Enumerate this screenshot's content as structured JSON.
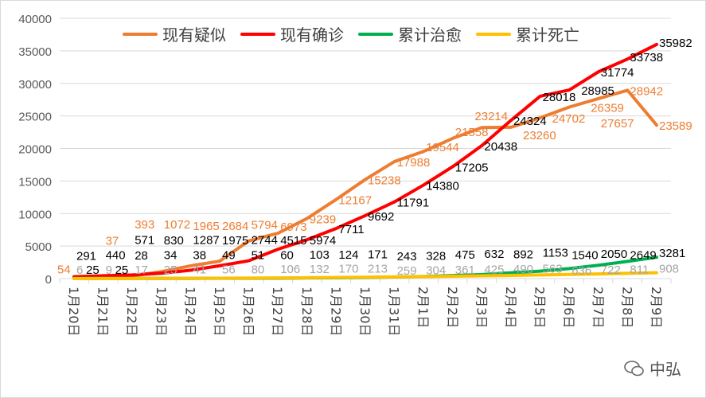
{
  "chart_data": {
    "type": "line",
    "title": "",
    "xlabel": "",
    "ylabel": "",
    "ylim": [
      0,
      40000
    ],
    "yticks": [
      0,
      5000,
      10000,
      15000,
      20000,
      25000,
      30000,
      35000,
      40000
    ],
    "grid": true,
    "legend_position": "top",
    "categories": [
      "1月20日",
      "1月21日",
      "1月22日",
      "1月23日",
      "1月24日",
      "1月25日",
      "1月26日",
      "1月27日",
      "1月28日",
      "1月29日",
      "1月30日",
      "1月31日",
      "2月1日",
      "2月2日",
      "2月3日",
      "2月4日",
      "2月5日",
      "2月6日",
      "2月7日",
      "2月8日",
      "2月9日"
    ],
    "series": [
      {
        "name": "现有疑似",
        "color": "#ED7D31",
        "label_color": "#ED7D31",
        "values": [
          54,
          37,
          393,
          1072,
          1965,
          2684,
          5794,
          6973,
          9239,
          12167,
          15238,
          17988,
          19544,
          21558,
          23214,
          23260,
          24702,
          26359,
          27657,
          28942,
          23589
        ]
      },
      {
        "name": "现有确诊",
        "color": "#FF0000",
        "label_color": "#000000",
        "values": [
          291,
          440,
          571,
          830,
          1287,
          1975,
          2744,
          4515,
          5974,
          7711,
          9692,
          11791,
          14380,
          17205,
          20438,
          24324,
          28018,
          28985,
          31774,
          33738,
          35982
        ]
      },
      {
        "name": "累计治愈",
        "color": "#00B050",
        "label_color": "#000000",
        "values": [
          25,
          25,
          28,
          34,
          38,
          49,
          51,
          60,
          103,
          124,
          171,
          243,
          328,
          475,
          632,
          892,
          1153,
          1540,
          2050,
          2649,
          3281
        ]
      },
      {
        "name": "累计死亡",
        "color": "#FFC000",
        "label_color": "#A5A5A5",
        "values": [
          6,
          9,
          17,
          25,
          41,
          56,
          80,
          106,
          132,
          170,
          213,
          259,
          304,
          361,
          425,
          490,
          563,
          636,
          722,
          811,
          908
        ]
      }
    ]
  },
  "watermark": {
    "text": "中弘",
    "icon": "wechat-icon"
  }
}
